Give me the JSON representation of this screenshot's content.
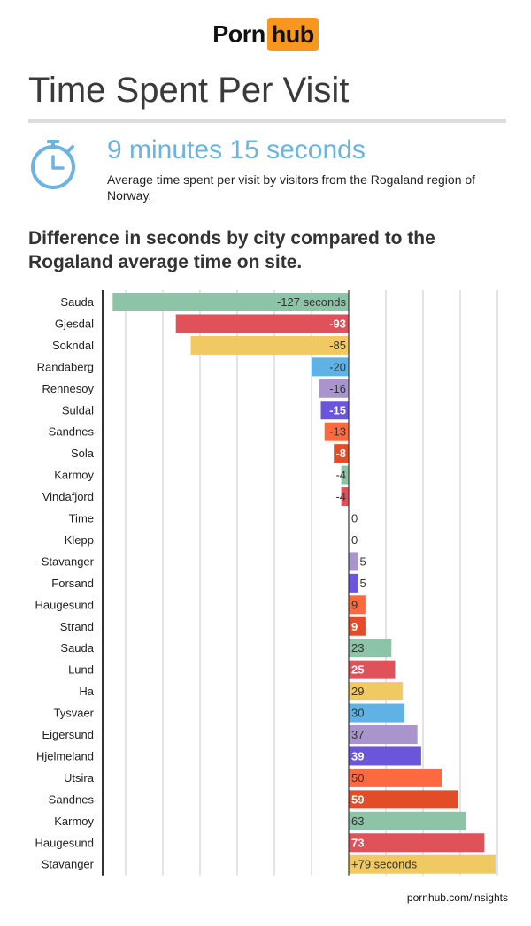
{
  "logo": {
    "part1": "Porn",
    "part2": "hub"
  },
  "title": "Time Spent Per Visit",
  "headline": "9 minutes 15 seconds",
  "subtext": "Average time spent per visit by visitors from the Rogaland region of Norway.",
  "chart_title": "Difference in seconds by city compared to the Rogaland average time on site.",
  "footer": "pornhub.com/insights",
  "colors": {
    "accent": "#6ab4e3",
    "brand": "#f7971d",
    "grid": "#c8c8c8",
    "axis": "#333333",
    "palette": [
      "#8dc3a7",
      "#e0525a",
      "#f0c963",
      "#5fb2e5",
      "#a995cb",
      "#6b55db",
      "#fd6a3f",
      "#e24c27"
    ]
  },
  "chart_data": {
    "type": "bar",
    "orientation": "horizontal",
    "title": "Difference in seconds by city compared to the Rogaland average time on site.",
    "xlabel": "seconds",
    "ylabel": "",
    "xlim": [
      -130,
      82
    ],
    "gridlines": [
      -120,
      -100,
      -80,
      -60,
      -40,
      -20,
      0,
      20,
      40,
      60,
      80
    ],
    "categories": [
      "Sauda",
      "Gjesdal",
      "Sokndal",
      "Randaberg",
      "Rennesoy",
      "Suldal",
      "Sandnes",
      "Sola",
      "Karmoy",
      "Vindafjord",
      "Time",
      "Klepp",
      "Stavanger",
      "Forsand",
      "Haugesund",
      "Strand",
      "Sauda",
      "Lund",
      "Ha",
      "Tysvaer",
      "Eigersund",
      "Hjelmeland",
      "Utsira",
      "Sandnes",
      "Karmoy",
      "Haugesund",
      "Stavanger"
    ],
    "values": [
      -127,
      -93,
      -85,
      -20,
      -16,
      -15,
      -13,
      -8,
      -4,
      -4,
      0,
      0,
      5,
      5,
      9,
      9,
      23,
      25,
      29,
      30,
      37,
      39,
      50,
      59,
      63,
      73,
      79
    ],
    "labels": [
      "-127 seconds",
      "-93",
      "-85",
      "-20",
      "-16",
      "-15",
      "-13",
      "-8",
      "-4",
      "-4",
      "0",
      "0",
      "5",
      "5",
      "9",
      "9",
      "23",
      "25",
      "29",
      "30",
      "37",
      "39",
      "50",
      "59",
      "63",
      "73",
      "+79 seconds"
    ],
    "bar_colors": [
      "#8dc3a7",
      "#e0525a",
      "#f0c963",
      "#5fb2e5",
      "#a995cb",
      "#6b55db",
      "#fd6a3f",
      "#e24c27",
      "#8dc3a7",
      "#e0525a",
      "#f0c963",
      "#5fb2e5",
      "#a995cb",
      "#6b55db",
      "#fd6a3f",
      "#e24c27",
      "#8dc3a7",
      "#e0525a",
      "#f0c963",
      "#5fb2e5",
      "#a995cb",
      "#6b55db",
      "#fd6a3f",
      "#e24c27",
      "#8dc3a7",
      "#e0525a",
      "#f0c963"
    ],
    "label_white": [
      false,
      true,
      false,
      false,
      false,
      true,
      false,
      true,
      false,
      false,
      false,
      false,
      false,
      false,
      false,
      true,
      false,
      true,
      false,
      false,
      false,
      true,
      false,
      true,
      false,
      true,
      false
    ]
  }
}
